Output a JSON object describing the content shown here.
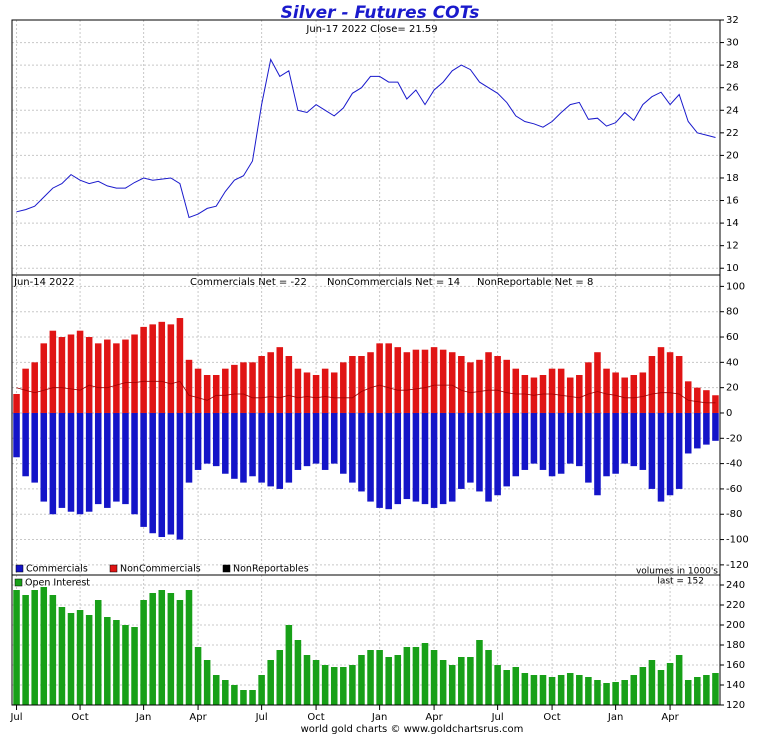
{
  "chart_data": [
    {
      "type": "line",
      "title": "Silver - Futures COTs",
      "subtitle": "Jun-17  2022   Close= 21.59",
      "series": [
        {
          "name": "Close",
          "color": "#1a1acc",
          "values": [
            15.0,
            15.2,
            15.5,
            16.3,
            17.1,
            17.5,
            18.3,
            17.8,
            17.5,
            17.7,
            17.3,
            17.1,
            17.1,
            17.6,
            18.0,
            17.8,
            17.9,
            18.0,
            17.5,
            14.5,
            14.8,
            15.3,
            15.5,
            16.8,
            17.8,
            18.2,
            19.5,
            24.5,
            28.5,
            27.0,
            27.5,
            24.0,
            23.8,
            24.5,
            24.0,
            23.5,
            24.2,
            25.5,
            26.0,
            27.0,
            27.0,
            26.5,
            26.5,
            25.0,
            25.8,
            24.5,
            25.8,
            26.5,
            27.5,
            28.0,
            27.6,
            26.5,
            26.0,
            25.5,
            24.7,
            23.5,
            23.0,
            22.8,
            22.5,
            23.0,
            23.8,
            24.5,
            24.7,
            23.2,
            23.3,
            22.6,
            22.9,
            23.8,
            23.1,
            24.5,
            25.2,
            25.6,
            24.5,
            25.4,
            23.0,
            22.0,
            21.8,
            21.59
          ]
        }
      ],
      "ylim": [
        9.4,
        32
      ],
      "yticks": [
        10,
        12,
        14,
        16,
        18,
        20,
        22,
        24,
        26,
        28,
        30,
        32
      ],
      "grid": true
    },
    {
      "type": "bar",
      "date": "Jun-14  2022",
      "annotations": [
        "Commercials Net = -22",
        "NonCommercials Net = 14",
        "NonReportable Net = 8"
      ],
      "series": [
        {
          "name": "Commercials",
          "color": "#1414c8",
          "values": [
            -35,
            -50,
            -55,
            -70,
            -80,
            -75,
            -78,
            -80,
            -78,
            -72,
            -75,
            -70,
            -72,
            -80,
            -90,
            -95,
            -98,
            -96,
            -100,
            -55,
            -45,
            -40,
            -42,
            -48,
            -52,
            -55,
            -50,
            -55,
            -58,
            -60,
            -55,
            -45,
            -42,
            -40,
            -45,
            -40,
            -48,
            -55,
            -62,
            -70,
            -75,
            -76,
            -72,
            -68,
            -70,
            -72,
            -75,
            -72,
            -70,
            -60,
            -55,
            -62,
            -70,
            -65,
            -58,
            -50,
            -45,
            -40,
            -45,
            -50,
            -48,
            -40,
            -42,
            -55,
            -65,
            -50,
            -48,
            -40,
            -42,
            -45,
            -60,
            -70,
            -65,
            -60,
            -32,
            -28,
            -25,
            -22
          ]
        },
        {
          "name": "NonCommercials",
          "color": "#e01414",
          "values": [
            15,
            35,
            40,
            55,
            65,
            60,
            62,
            65,
            60,
            55,
            58,
            55,
            58,
            62,
            68,
            70,
            72,
            70,
            75,
            42,
            35,
            30,
            30,
            35,
            38,
            40,
            40,
            45,
            48,
            52,
            45,
            35,
            32,
            30,
            35,
            32,
            40,
            45,
            45,
            48,
            55,
            55,
            52,
            48,
            50,
            50,
            52,
            50,
            48,
            45,
            40,
            42,
            48,
            45,
            42,
            35,
            30,
            28,
            30,
            35,
            35,
            28,
            30,
            40,
            48,
            35,
            32,
            28,
            30,
            32,
            45,
            52,
            48,
            45,
            25,
            20,
            18,
            14
          ]
        },
        {
          "name": "NonReportables",
          "color": "#000000",
          "values": [
            20,
            18,
            16,
            18,
            20,
            20,
            19,
            18,
            22,
            20,
            20,
            22,
            24,
            24,
            25,
            25,
            25,
            23,
            25,
            14,
            12,
            10,
            14,
            14,
            15,
            15,
            12,
            12,
            13,
            12,
            14,
            12,
            13,
            12,
            13,
            12,
            12,
            12,
            17,
            20,
            22,
            20,
            18,
            18,
            19,
            20,
            22,
            22,
            22,
            18,
            16,
            17,
            18,
            18,
            16,
            15,
            15,
            14,
            15,
            15,
            14,
            13,
            12,
            15,
            17,
            15,
            14,
            12,
            12,
            13,
            15,
            16,
            16,
            15,
            10,
            9,
            8,
            8
          ]
        }
      ],
      "ylim": [
        -128,
        109
      ],
      "yticks": [
        -120,
        -100,
        -80,
        -60,
        -40,
        -20,
        0,
        20,
        40,
        60,
        80,
        100
      ],
      "grid": true
    },
    {
      "type": "bar",
      "note": "volumes in 1000's",
      "last": "last = 152",
      "categories": [
        "Jul",
        null,
        null,
        null,
        null,
        null,
        null,
        "Oct",
        null,
        null,
        null,
        null,
        null,
        null,
        "Jan",
        null,
        null,
        null,
        null,
        null,
        "Apr",
        null,
        null,
        null,
        null,
        null,
        null,
        "Jul",
        null,
        null,
        null,
        null,
        null,
        "Oct",
        null,
        null,
        null,
        null,
        null,
        null,
        "Jan",
        null,
        null,
        null,
        null,
        null,
        "Apr",
        null,
        null,
        null,
        null,
        null,
        null,
        "Jul",
        null,
        null,
        null,
        null,
        null,
        "Oct",
        null,
        null,
        null,
        null,
        null,
        null,
        "Jan",
        null,
        null,
        null,
        null,
        null,
        "Apr",
        null,
        null,
        null,
        null,
        null
      ],
      "series": [
        {
          "name": "Open Interest",
          "color": "#18a018",
          "values": [
            235,
            230,
            235,
            238,
            230,
            218,
            212,
            215,
            210,
            225,
            208,
            205,
            200,
            198,
            225,
            232,
            235,
            232,
            225,
            235,
            178,
            165,
            150,
            145,
            140,
            135,
            135,
            150,
            165,
            175,
            200,
            185,
            170,
            165,
            160,
            158,
            158,
            160,
            170,
            175,
            175,
            168,
            170,
            178,
            178,
            182,
            175,
            165,
            160,
            168,
            168,
            185,
            175,
            160,
            155,
            158,
            152,
            150,
            150,
            148,
            150,
            152,
            150,
            148,
            145,
            142,
            143,
            145,
            150,
            158,
            165,
            155,
            162,
            170,
            145,
            148,
            150,
            152
          ]
        }
      ],
      "ylim": [
        120,
        250
      ],
      "yticks": [
        120,
        140,
        160,
        180,
        200,
        220,
        240
      ],
      "grid": true
    },
    {
      "footer": "world gold charts © www.goldchartsrus.com"
    }
  ]
}
